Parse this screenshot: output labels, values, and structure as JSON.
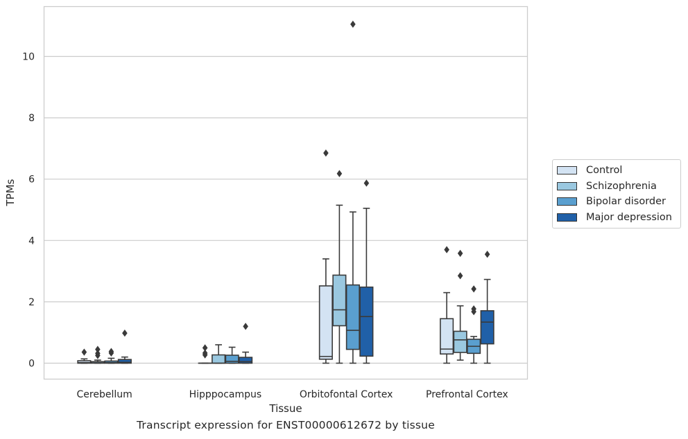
{
  "caption": "Transcript expression for ENST00000612672 by tissue",
  "legend_title": "",
  "colors": {
    "Control": "#d3e3f3",
    "Schizophrenia": "#9ac8e0",
    "Bipolar disorder": "#5a9fcf",
    "Major depression": "#2060a8",
    "edge": "#3a3a3a",
    "grid": "#cccccc"
  },
  "chart_data": {
    "type": "boxplot",
    "title": "",
    "xlabel": "Tissue",
    "ylabel": "TPMs",
    "ylim": [
      -0.55,
      11.7
    ],
    "yticks": [
      0,
      2,
      4,
      6,
      8,
      10
    ],
    "grid": "horizontal",
    "legend_position": "right",
    "categories": [
      "Cerebellum",
      "Hipppocampus",
      "Orbitofontal Cortex",
      "Prefrontal Cortex"
    ],
    "series": [
      {
        "name": "Control",
        "boxes": [
          {
            "q1": 0,
            "median": 0.02,
            "q3": 0.08,
            "whislo": 0,
            "whishi": 0.14,
            "fliers": [
              0.36
            ]
          },
          {
            "q1": 0,
            "median": 0,
            "q3": 0,
            "whislo": 0,
            "whishi": 0,
            "fliers": [
              0.27,
              0.33,
              0.5
            ]
          },
          {
            "q1": 0.13,
            "median": 0.22,
            "q3": 2.52,
            "whislo": 0,
            "whishi": 3.4,
            "fliers": [
              6.85
            ]
          },
          {
            "q1": 0.3,
            "median": 0.46,
            "q3": 1.45,
            "whislo": 0,
            "whishi": 2.3,
            "fliers": [
              3.7
            ]
          }
        ]
      },
      {
        "name": "Schizophrenia",
        "boxes": [
          {
            "q1": 0,
            "median": 0.01,
            "q3": 0.05,
            "whislo": 0,
            "whishi": 0.1,
            "fliers": [
              0.25,
              0.32,
              0.45
            ]
          },
          {
            "q1": 0,
            "median": 0,
            "q3": 0.27,
            "whislo": 0,
            "whishi": 0.6,
            "fliers": []
          },
          {
            "q1": 1.22,
            "median": 1.74,
            "q3": 2.87,
            "whislo": 0,
            "whishi": 5.15,
            "fliers": [
              6.18
            ]
          },
          {
            "q1": 0.35,
            "median": 0.76,
            "q3": 1.04,
            "whislo": 0.1,
            "whishi": 1.87,
            "fliers": [
              2.85,
              3.58
            ]
          }
        ]
      },
      {
        "name": "Bipolar disorder",
        "boxes": [
          {
            "q1": 0,
            "median": 0.02,
            "q3": 0.07,
            "whislo": 0,
            "whishi": 0.16,
            "fliers": [
              0.33,
              0.38
            ]
          },
          {
            "q1": 0,
            "median": 0.06,
            "q3": 0.26,
            "whislo": 0,
            "whishi": 0.52,
            "fliers": []
          },
          {
            "q1": 0.45,
            "median": 1.07,
            "q3": 2.55,
            "whislo": 0,
            "whishi": 4.93,
            "fliers": [
              11.05
            ]
          },
          {
            "q1": 0.32,
            "median": 0.55,
            "q3": 0.78,
            "whislo": 0,
            "whishi": 0.87,
            "fliers": [
              1.68,
              1.77,
              2.42
            ]
          }
        ]
      },
      {
        "name": "Major depression",
        "boxes": [
          {
            "q1": 0,
            "median": 0.03,
            "q3": 0.12,
            "whislo": 0,
            "whishi": 0.2,
            "fliers": [
              0.98
            ]
          },
          {
            "q1": 0,
            "median": 0.05,
            "q3": 0.19,
            "whislo": 0,
            "whishi": 0.36,
            "fliers": [
              1.2
            ]
          },
          {
            "q1": 0.23,
            "median": 1.52,
            "q3": 2.48,
            "whislo": 0,
            "whishi": 5.05,
            "fliers": [
              5.87
            ]
          },
          {
            "q1": 0.63,
            "median": 1.34,
            "q3": 1.71,
            "whislo": 0,
            "whishi": 2.73,
            "fliers": [
              3.55
            ]
          }
        ]
      }
    ]
  }
}
